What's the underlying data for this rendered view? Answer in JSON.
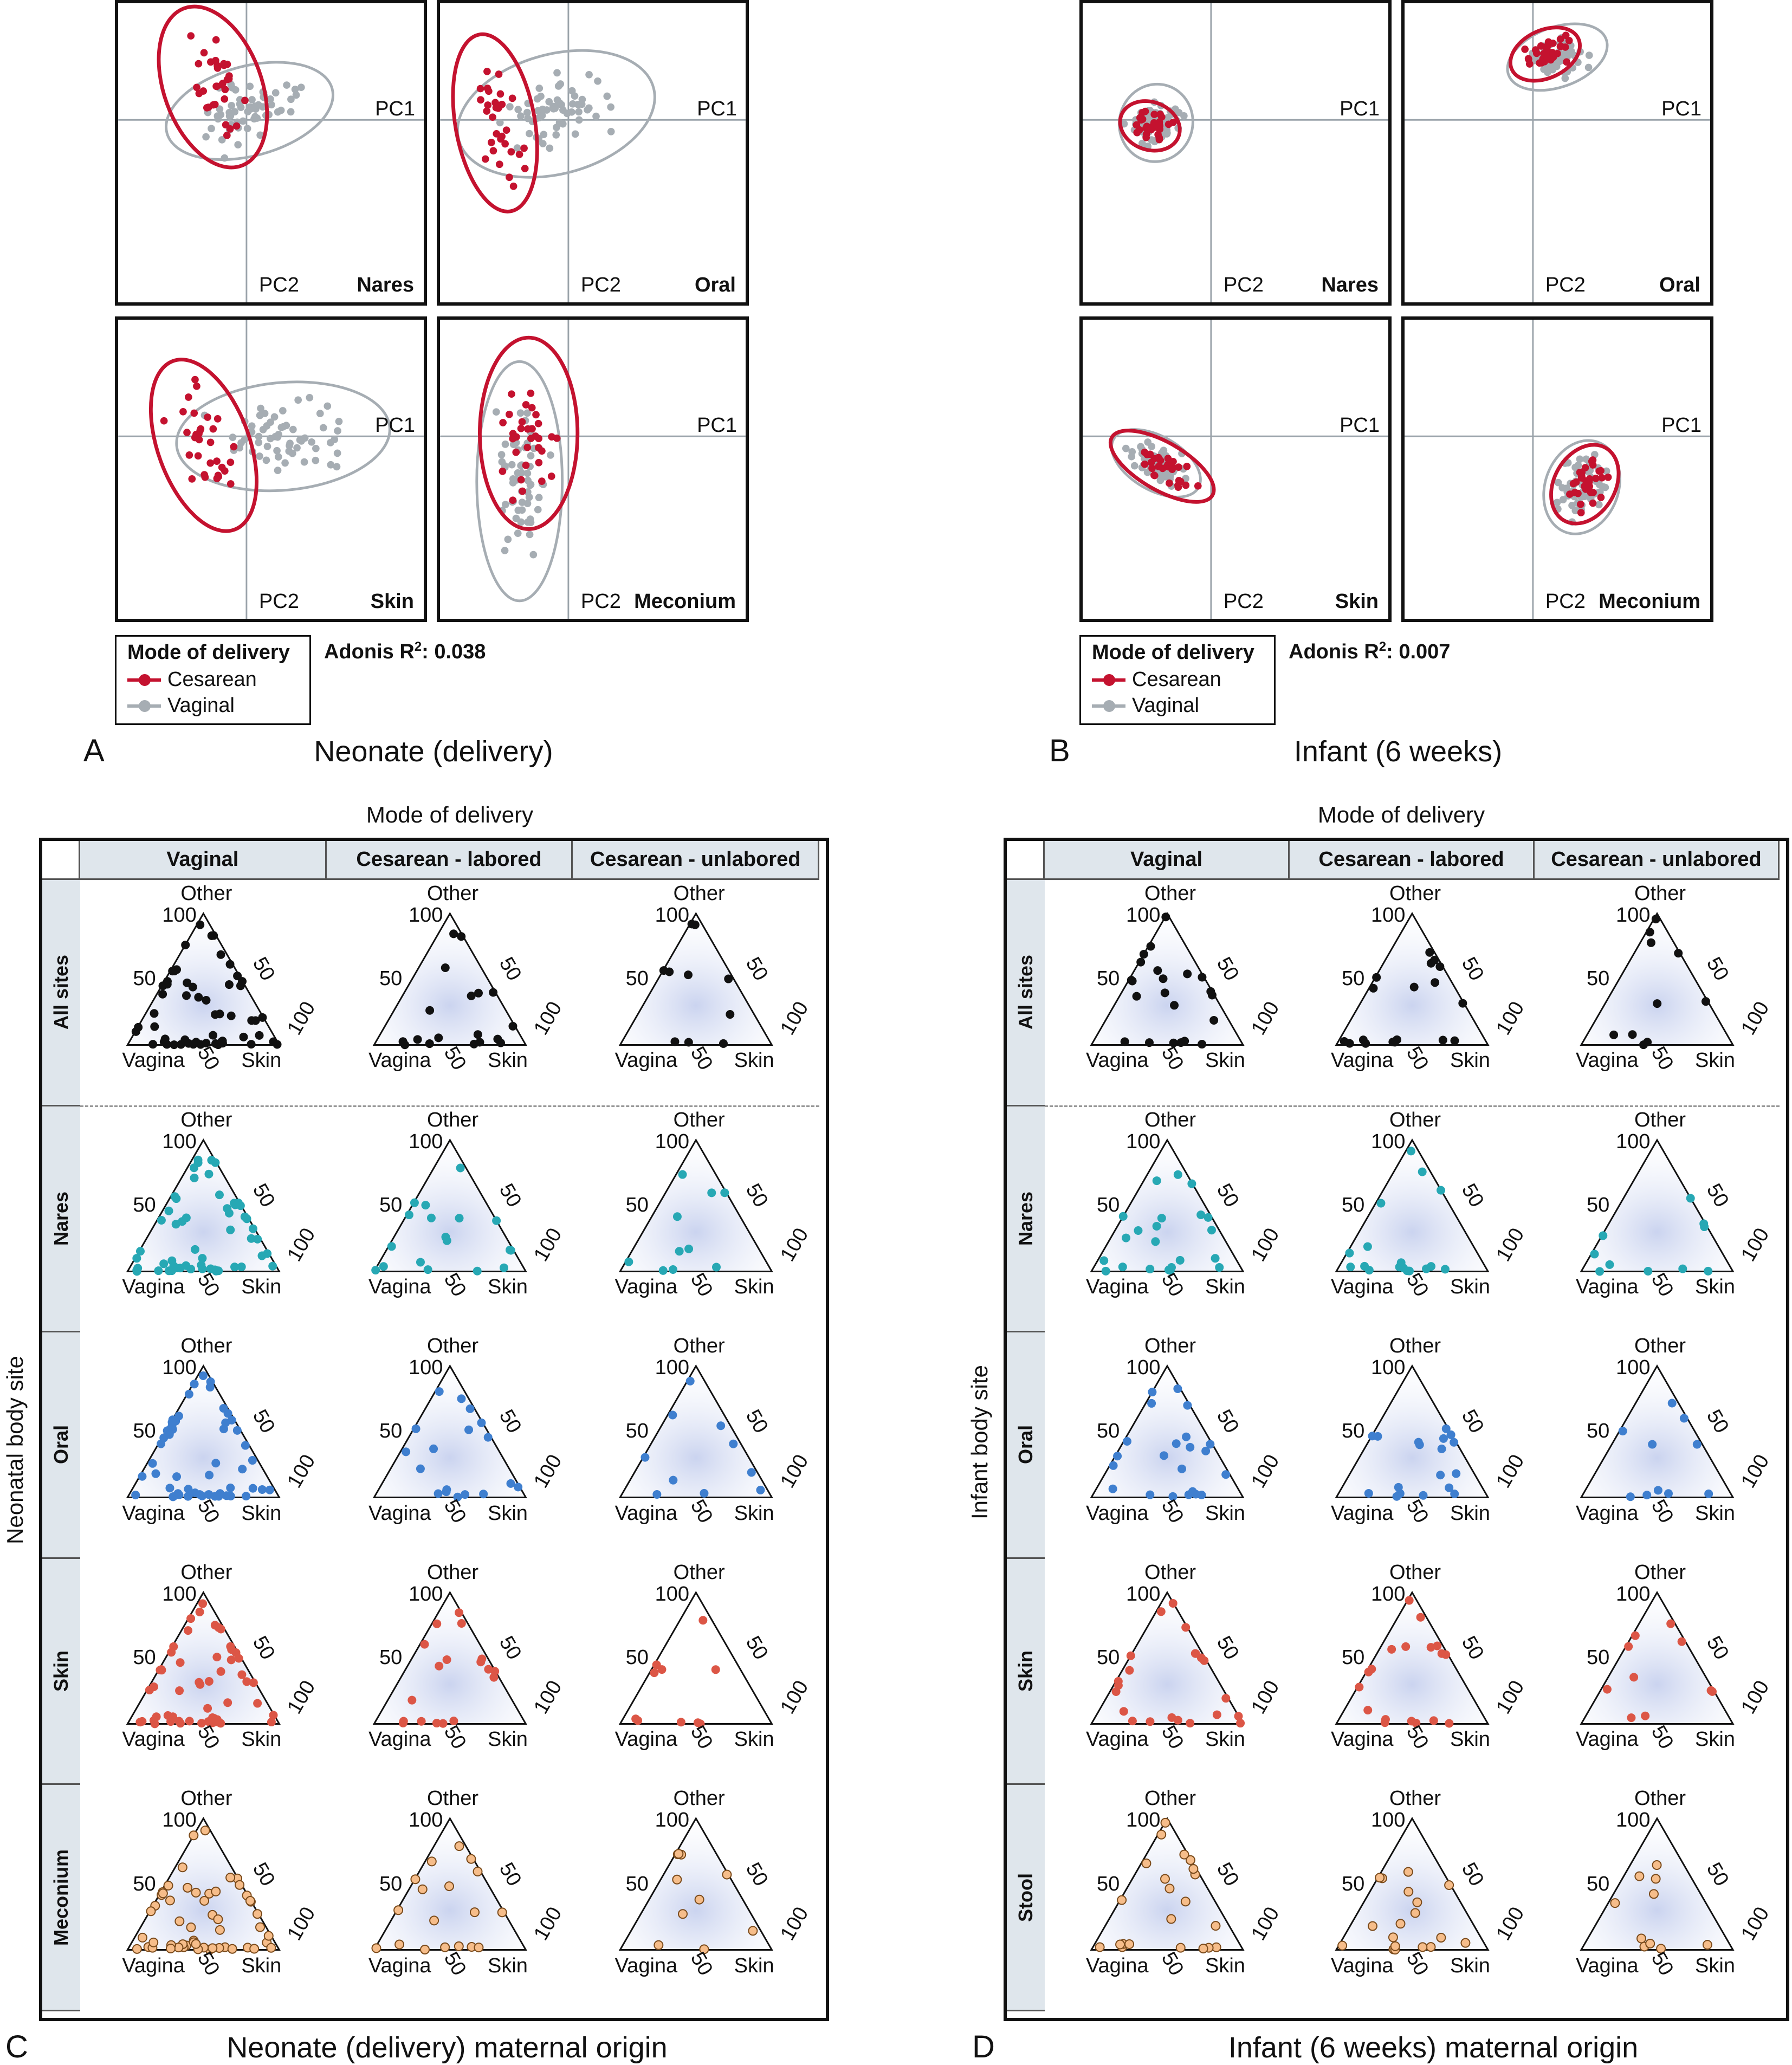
{
  "pca": {
    "axis_pc1": "PC1",
    "axis_pc2": "PC2",
    "sites": [
      "Nares",
      "Oral",
      "Skin",
      "Meconium"
    ],
    "legend_title": "Mode of delivery",
    "legend_items": [
      "Cesarean",
      "Vaginal"
    ],
    "colors": {
      "cesarean": "#c4122f",
      "vaginal": "#a6adb3"
    },
    "panel_a": {
      "letter": "A",
      "caption": "Neonate (delivery)",
      "adonis_prefix": "Adonis R",
      "adonis_sup": "2",
      "adonis_value": ": 0.038"
    },
    "panel_b": {
      "letter": "B",
      "caption": "Infant (6 weeks)",
      "adonis_prefix": "Adonis R",
      "adonis_sup": "2",
      "adonis_value": ": 0.007"
    }
  },
  "ternary": {
    "top_title": "Mode of delivery",
    "columns": [
      "Vaginal",
      "Cesarean - labored",
      "Cesarean - unlabored"
    ],
    "vertex_top": "Other",
    "vertex_left": "Vagina",
    "vertex_right": "Skin",
    "tick_100": "100",
    "tick_50": "50",
    "panel_c": {
      "letter": "C",
      "caption": "Neonate (delivery) maternal origin",
      "side_title": "Neonatal body site",
      "rows": [
        "All sites",
        "Nares",
        "Oral",
        "Skin",
        "Meconium"
      ]
    },
    "panel_d": {
      "letter": "D",
      "caption": "Infant (6 weeks) maternal origin",
      "side_title": "Infant body site",
      "rows": [
        "All sites",
        "Nares",
        "Oral",
        "Skin",
        "Stool"
      ]
    },
    "row_colors": {
      "all": "#111111",
      "nares": "#27a8b4",
      "oral": "#3f7fcf",
      "skin": "#dc5646",
      "stool": "#f6bd8a"
    }
  }
}
